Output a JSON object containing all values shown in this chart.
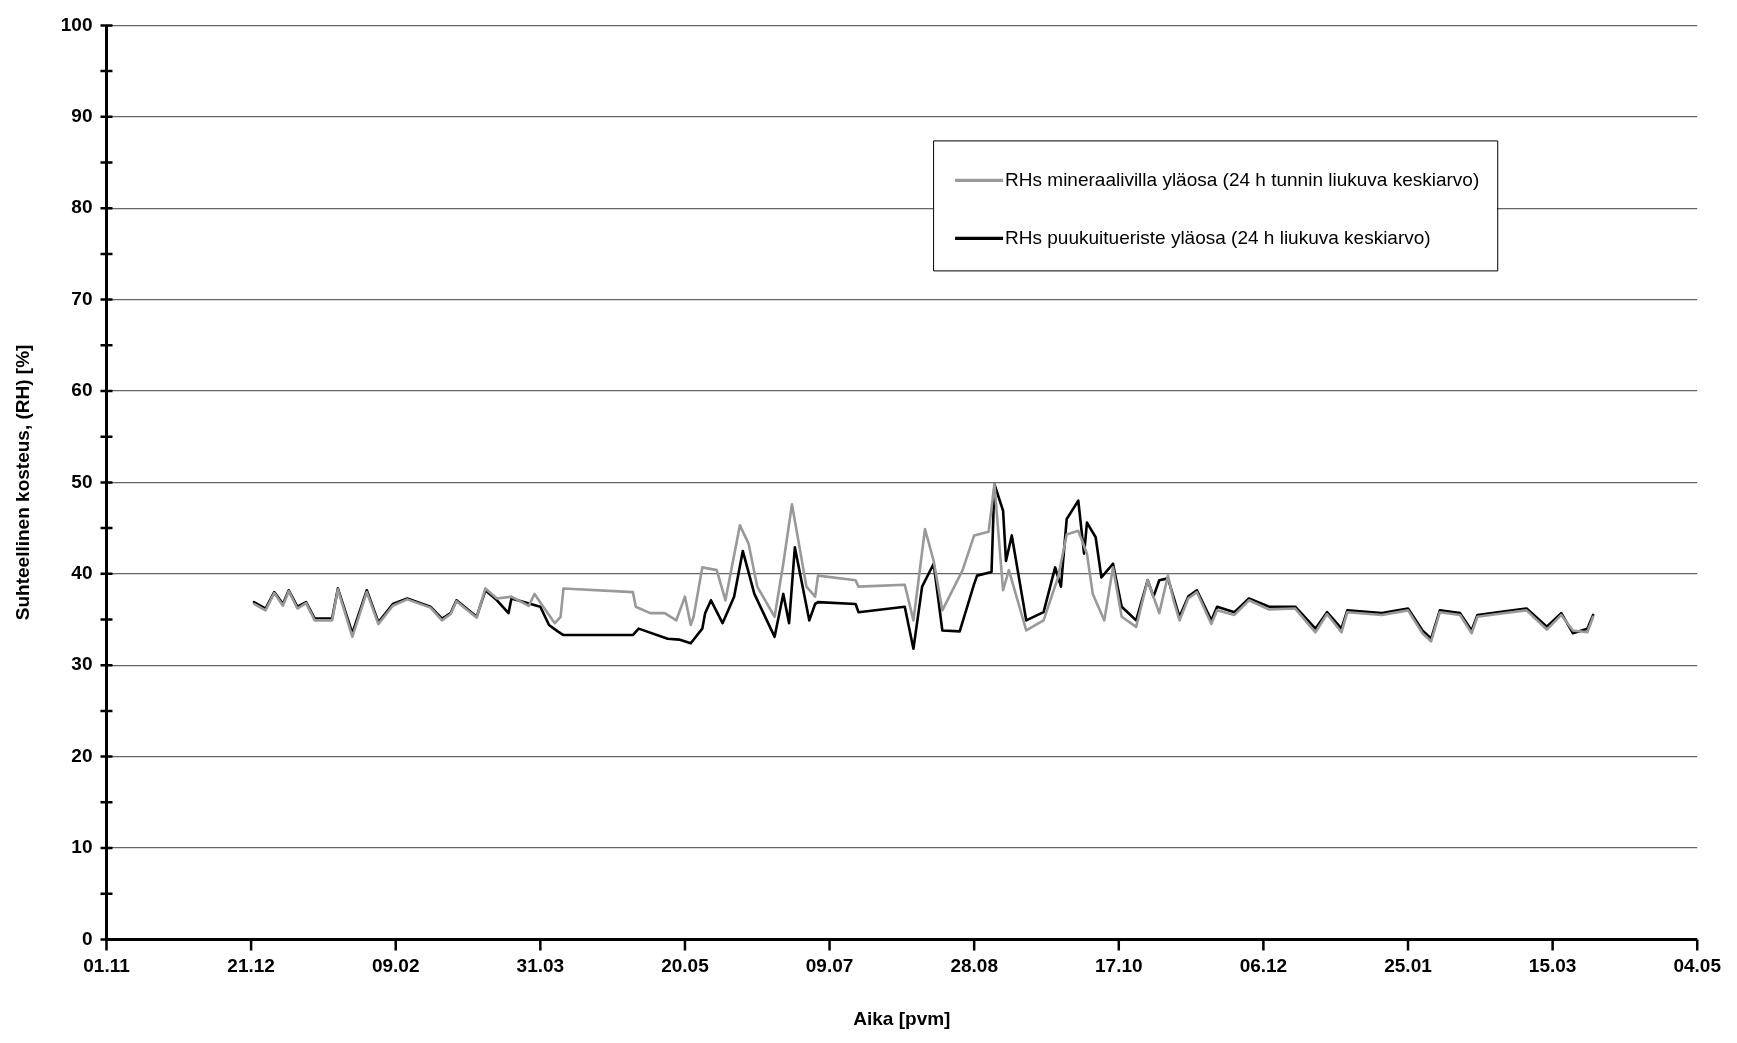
{
  "chart_data": {
    "type": "line",
    "xlabel": "Aika [pvm]",
    "ylabel": "Suhteellinen kosteus, (RH) [%]",
    "xlim": [
      "2006-11-01",
      "2008-05-04"
    ],
    "xticks": [
      {
        "value": "2006-11-01",
        "label": "01.11"
      },
      {
        "value": "2006-12-21",
        "label": "21.12"
      },
      {
        "value": "2007-02-09",
        "label": "09.02"
      },
      {
        "value": "2007-03-31",
        "label": "31.03"
      },
      {
        "value": "2007-05-20",
        "label": "20.05"
      },
      {
        "value": "2007-07-09",
        "label": "09.07"
      },
      {
        "value": "2007-08-28",
        "label": "28.08"
      },
      {
        "value": "2007-10-17",
        "label": "17.10"
      },
      {
        "value": "2007-12-06",
        "label": "06.12"
      },
      {
        "value": "2008-01-25",
        "label": "25.01"
      },
      {
        "value": "2008-03-15",
        "label": "15.03"
      },
      {
        "value": "2008-05-04",
        "label": "04.05"
      }
    ],
    "ylim": [
      0,
      100
    ],
    "yticks": [
      0,
      10,
      20,
      30,
      40,
      50,
      60,
      70,
      80,
      90,
      100
    ],
    "grid": "y",
    "legend": "top right",
    "marker": "none",
    "line_style": "solid",
    "series": [
      {
        "name": "RHs mineraalivilla yläosa (24 h tunnin liukuva keskiarvo)",
        "color": "#999999",
        "x": [
          "2006-12-22",
          "2006-12-26",
          "2006-12-29",
          "2007-01-01",
          "2007-01-03",
          "2007-01-06",
          "2007-01-09",
          "2007-01-12",
          "2007-01-18",
          "2007-01-20",
          "2007-01-25",
          "2007-01-30",
          "2007-02-03",
          "2007-02-08",
          "2007-02-13",
          "2007-02-21",
          "2007-02-25",
          "2007-02-28",
          "2007-03-02",
          "2007-03-09",
          "2007-03-12",
          "2007-03-16",
          "2007-03-21",
          "2007-03-27",
          "2007-03-29",
          "2007-04-01",
          "2007-04-05",
          "2007-04-07",
          "2007-04-08",
          "2007-05-02",
          "2007-05-03",
          "2007-05-08",
          "2007-05-13",
          "2007-05-17",
          "2007-05-20",
          "2007-05-22",
          "2007-05-23",
          "2007-05-26",
          "2007-05-31",
          "2007-06-03",
          "2007-06-08",
          "2007-06-11",
          "2007-06-14",
          "2007-06-20",
          "2007-06-23",
          "2007-06-26",
          "2007-07-01",
          "2007-07-04",
          "2007-07-05",
          "2007-07-18",
          "2007-07-19",
          "2007-08-04",
          "2007-08-07",
          "2007-08-11",
          "2007-08-14",
          "2007-08-17",
          "2007-08-24",
          "2007-08-28",
          "2007-09-02",
          "2007-09-04",
          "2007-09-07",
          "2007-09-09",
          "2007-09-15",
          "2007-09-21",
          "2007-09-26",
          "2007-09-29",
          "2007-10-03",
          "2007-10-06",
          "2007-10-08",
          "2007-10-12",
          "2007-10-15",
          "2007-10-18",
          "2007-10-23",
          "2007-10-27",
          "2007-10-31",
          "2007-11-03",
          "2007-11-05",
          "2007-11-07",
          "2007-11-10",
          "2007-11-13",
          "2007-11-18",
          "2007-11-20",
          "2007-11-26",
          "2007-12-01",
          "2007-12-08",
          "2007-12-17",
          "2007-12-24",
          "2007-12-28",
          "2008-01-02",
          "2008-01-04",
          "2008-01-16",
          "2008-01-25",
          "2008-01-30",
          "2008-02-02",
          "2008-02-05",
          "2008-02-12",
          "2008-02-16",
          "2008-02-18",
          "2008-02-25",
          "2008-03-06",
          "2008-03-13",
          "2008-03-18",
          "2008-03-22",
          "2008-03-27",
          "2008-03-29"
        ],
        "values": [
          36.7,
          36.0,
          37.9,
          36.5,
          38.1,
          36.2,
          36.8,
          34.9,
          34.9,
          38.3,
          33.1,
          38.0,
          34.5,
          36.5,
          37.2,
          36.3,
          34.9,
          35.6,
          37.0,
          35.2,
          38.4,
          37.3,
          37.5,
          36.5,
          37.8,
          36.4,
          34.6,
          35.3,
          38.4,
          38.0,
          36.4,
          35.7,
          35.7,
          34.9,
          37.5,
          34.4,
          35.3,
          40.7,
          40.4,
          37.1,
          45.3,
          43.3,
          38.6,
          35.3,
          41.1,
          47.6,
          38.6,
          37.5,
          39.8,
          39.3,
          38.6,
          38.8,
          34.9,
          44.9,
          41.4,
          36.0,
          40.4,
          44.2,
          44.6,
          49.8,
          38.2,
          40.4,
          33.8,
          34.9,
          39.6,
          44.3,
          44.7,
          42.2,
          37.8,
          34.9,
          40.7,
          35.3,
          34.2,
          39.3,
          35.7,
          39.8,
          37.0,
          34.9,
          37.3,
          38.0,
          34.5,
          36.0,
          35.5,
          37.1,
          36.1,
          36.2,
          33.6,
          35.6,
          33.6,
          35.8,
          35.5,
          36.0,
          33.5,
          32.6,
          35.8,
          35.5,
          33.5,
          35.3,
          35.6,
          36.0,
          33.9,
          35.5,
          33.8,
          33.6,
          35.3
        ]
      },
      {
        "name": "RHs puukuitueriste yläosa (24 h liukuva keskiarvo)",
        "color": "#000000",
        "x": [
          "2006-12-22",
          "2006-12-26",
          "2006-12-29",
          "2007-01-01",
          "2007-01-03",
          "2007-01-06",
          "2007-01-09",
          "2007-01-12",
          "2007-01-18",
          "2007-01-20",
          "2007-01-25",
          "2007-01-30",
          "2007-02-03",
          "2007-02-08",
          "2007-02-13",
          "2007-02-21",
          "2007-02-25",
          "2007-02-28",
          "2007-03-02",
          "2007-03-09",
          "2007-03-12",
          "2007-03-16",
          "2007-03-20",
          "2007-03-21",
          "2007-03-31",
          "2007-04-03",
          "2007-04-06",
          "2007-04-08",
          "2007-05-02",
          "2007-05-04",
          "2007-05-14",
          "2007-05-18",
          "2007-05-22",
          "2007-05-26",
          "2007-05-27",
          "2007-05-29",
          "2007-06-02",
          "2007-06-06",
          "2007-06-09",
          "2007-06-13",
          "2007-06-20",
          "2007-06-23",
          "2007-06-25",
          "2007-06-27",
          "2007-07-02",
          "2007-07-04",
          "2007-07-05",
          "2007-07-18",
          "2007-07-19",
          "2007-08-04",
          "2007-08-07",
          "2007-08-10",
          "2007-08-14",
          "2007-08-17",
          "2007-08-23",
          "2007-08-28",
          "2007-08-29",
          "2007-09-03",
          "2007-09-04",
          "2007-09-07",
          "2007-09-08",
          "2007-09-10",
          "2007-09-15",
          "2007-09-21",
          "2007-09-25",
          "2007-09-27",
          "2007-09-29",
          "2007-10-03",
          "2007-10-05",
          "2007-10-06",
          "2007-10-09",
          "2007-10-11",
          "2007-10-15",
          "2007-10-18",
          "2007-10-23",
          "2007-10-27",
          "2007-10-29",
          "2007-10-31",
          "2007-11-03",
          "2007-11-07",
          "2007-11-10",
          "2007-11-13",
          "2007-11-18",
          "2007-11-20",
          "2007-11-26",
          "2007-12-01",
          "2007-12-08",
          "2007-12-17",
          "2007-12-24",
          "2007-12-28",
          "2008-01-02",
          "2008-01-04",
          "2008-01-16",
          "2008-01-25",
          "2008-01-30",
          "2008-02-02",
          "2008-02-05",
          "2008-02-12",
          "2008-02-16",
          "2008-02-18",
          "2008-02-25",
          "2008-03-06",
          "2008-03-13",
          "2008-03-18",
          "2008-03-22",
          "2008-03-27",
          "2008-03-29"
        ],
        "values": [
          36.9,
          36.2,
          38.0,
          36.7,
          38.2,
          36.4,
          36.9,
          35.1,
          35.1,
          38.4,
          33.5,
          38.2,
          34.7,
          36.7,
          37.3,
          36.4,
          35.1,
          35.7,
          37.1,
          35.3,
          38.2,
          37.1,
          35.7,
          37.3,
          36.4,
          34.4,
          33.7,
          33.3,
          33.3,
          34.0,
          32.9,
          32.8,
          32.4,
          34.0,
          35.7,
          37.1,
          34.6,
          37.5,
          42.5,
          37.8,
          33.1,
          37.8,
          34.6,
          42.9,
          34.9,
          36.7,
          36.9,
          36.7,
          35.8,
          36.4,
          31.8,
          38.6,
          41.1,
          33.8,
          33.7,
          38.9,
          39.8,
          40.2,
          49.8,
          46.9,
          41.4,
          44.2,
          34.9,
          35.8,
          40.7,
          38.6,
          46.0,
          48.0,
          42.2,
          45.6,
          44.0,
          39.6,
          41.1,
          36.4,
          34.9,
          39.3,
          37.5,
          39.3,
          39.5,
          35.3,
          37.5,
          38.2,
          34.9,
          36.4,
          35.8,
          37.3,
          36.4,
          36.4,
          34.0,
          35.8,
          34.0,
          36.0,
          35.7,
          36.2,
          33.8,
          32.9,
          36.0,
          35.7,
          33.8,
          35.5,
          35.8,
          36.2,
          34.2,
          35.7,
          33.5,
          34.0,
          35.5
        ]
      }
    ]
  }
}
